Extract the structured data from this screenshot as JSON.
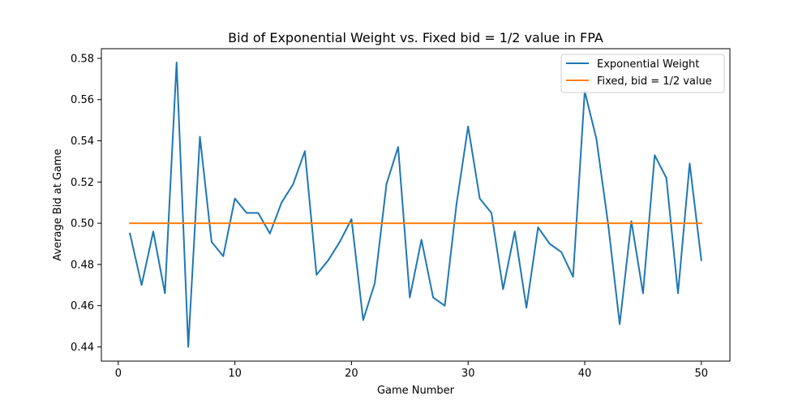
{
  "chart_data": {
    "type": "line",
    "title": "Bid of Exponential Weight vs. Fixed bid = 1/2 value in FPA",
    "xlabel": "Game Number",
    "ylabel": "Average Bid at Game",
    "xlim": [
      -1.45,
      52.45
    ],
    "ylim": [
      0.4331,
      0.5847
    ],
    "xticks": [
      0,
      10,
      20,
      30,
      40,
      50
    ],
    "xtick_labels": [
      "0",
      "10",
      "20",
      "30",
      "40",
      "50"
    ],
    "yticks": [
      0.44,
      0.46,
      0.48,
      0.5,
      0.52,
      0.54,
      0.56,
      0.58
    ],
    "ytick_labels": [
      "0.44",
      "0.46",
      "0.48",
      "0.50",
      "0.52",
      "0.54",
      "0.56",
      "0.58"
    ],
    "grid": false,
    "legend_position": "top-right",
    "x": [
      1,
      2,
      3,
      4,
      5,
      6,
      7,
      8,
      9,
      10,
      11,
      12,
      13,
      14,
      15,
      16,
      17,
      18,
      19,
      20,
      21,
      22,
      23,
      24,
      25,
      26,
      27,
      28,
      29,
      30,
      31,
      32,
      33,
      34,
      35,
      36,
      37,
      38,
      39,
      40,
      41,
      42,
      43,
      44,
      45,
      46,
      47,
      48,
      49,
      50
    ],
    "series": [
      {
        "name": "Exponential Weight",
        "color": "#1f77b4",
        "values": [
          0.495,
          0.47,
          0.496,
          0.466,
          0.578,
          0.44,
          0.542,
          0.491,
          0.484,
          0.512,
          0.505,
          0.505,
          0.495,
          0.51,
          0.519,
          0.535,
          0.475,
          0.482,
          0.491,
          0.502,
          0.453,
          0.471,
          0.519,
          0.537,
          0.464,
          0.492,
          0.464,
          0.46,
          0.509,
          0.547,
          0.512,
          0.505,
          0.468,
          0.496,
          0.459,
          0.498,
          0.49,
          0.486,
          0.474,
          0.564,
          0.541,
          0.5,
          0.451,
          0.501,
          0.466,
          0.533,
          0.522,
          0.466,
          0.529,
          0.482
        ]
      },
      {
        "name": "Fixed, bid = 1/2 value",
        "color": "#ff7f0e",
        "values": [
          0.5,
          0.5,
          0.5,
          0.5,
          0.5,
          0.5,
          0.5,
          0.5,
          0.5,
          0.5,
          0.5,
          0.5,
          0.5,
          0.5,
          0.5,
          0.5,
          0.5,
          0.5,
          0.5,
          0.5,
          0.5,
          0.5,
          0.5,
          0.5,
          0.5,
          0.5,
          0.5,
          0.5,
          0.5,
          0.5,
          0.5,
          0.5,
          0.5,
          0.5,
          0.5,
          0.5,
          0.5,
          0.5,
          0.5,
          0.5,
          0.5,
          0.5,
          0.5,
          0.5,
          0.5,
          0.5,
          0.5,
          0.5,
          0.5,
          0.5
        ]
      }
    ]
  }
}
